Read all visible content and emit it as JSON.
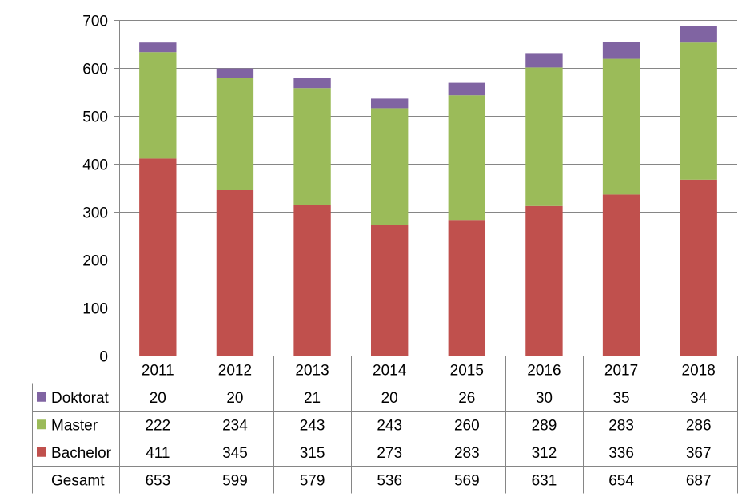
{
  "chart_data": {
    "type": "bar",
    "stacked": true,
    "title": "",
    "xlabel": "",
    "ylabel": "",
    "ylim": [
      0,
      700
    ],
    "yticks": [
      0,
      100,
      200,
      300,
      400,
      500,
      600,
      700
    ],
    "grid": true,
    "legend": "data-table-left",
    "categories": [
      "2011",
      "2012",
      "2013",
      "2014",
      "2015",
      "2016",
      "2017",
      "2018"
    ],
    "series": [
      {
        "name": "Bachelor",
        "color": "#c0504d",
        "values": [
          411,
          345,
          315,
          273,
          283,
          312,
          336,
          367
        ]
      },
      {
        "name": "Master",
        "color": "#9bbb59",
        "values": [
          222,
          234,
          243,
          243,
          260,
          289,
          283,
          286
        ]
      },
      {
        "name": "Doktorat",
        "color": "#8064a2",
        "values": [
          20,
          20,
          21,
          20,
          26,
          30,
          35,
          34
        ]
      }
    ],
    "table_rows": [
      "Doktorat",
      "Master",
      "Bachelor"
    ],
    "total": {
      "name": "Gesamt",
      "values": [
        653,
        599,
        579,
        536,
        569,
        631,
        654,
        687
      ]
    }
  }
}
